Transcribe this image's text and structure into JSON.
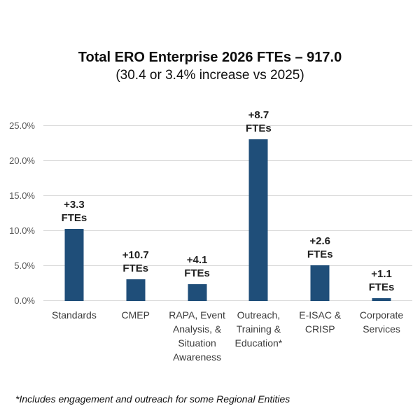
{
  "chart_data": {
    "type": "bar",
    "title": "Total ERO Enterprise 2026 FTEs – 917.0",
    "subtitle": "(30.4 or 3.4% increase vs 2025)",
    "categories": [
      "Standards",
      "CMEP",
      "RAPA, Event Analysis, & Situation Awareness",
      "Outreach, Training & Education*",
      "E-ISAC & CRISP",
      "Corporate Services"
    ],
    "values": [
      10.3,
      3.1,
      2.4,
      23.1,
      5.1,
      0.4
    ],
    "point_labels": [
      "+3.3 FTEs",
      "+10.7 FTEs",
      "+4.1 FTEs",
      "+8.7 FTEs",
      "+2.6 FTEs",
      "+1.1 FTEs"
    ],
    "y_ticks": [
      {
        "value": 0,
        "label": "0.0%"
      },
      {
        "value": 5,
        "label": "5.0%"
      },
      {
        "value": 10,
        "label": "10.0%"
      },
      {
        "value": 15,
        "label": "15.0%"
      },
      {
        "value": 20,
        "label": "20.0%"
      },
      {
        "value": 25,
        "label": "25.0%"
      }
    ],
    "ylim": [
      0,
      25
    ],
    "xlabel": "",
    "ylabel": "",
    "grid": true,
    "legend": false
  },
  "footnote": "*Includes engagement and outreach for some Regional Entities",
  "colors": {
    "bar": "#1F4E79",
    "gridline": "#D9D9D9",
    "ytick_text": "#595959",
    "xtick_text": "#3B3B3B",
    "point_label_text": "#1F1F1F",
    "title_text": "#0D0D0D"
  }
}
